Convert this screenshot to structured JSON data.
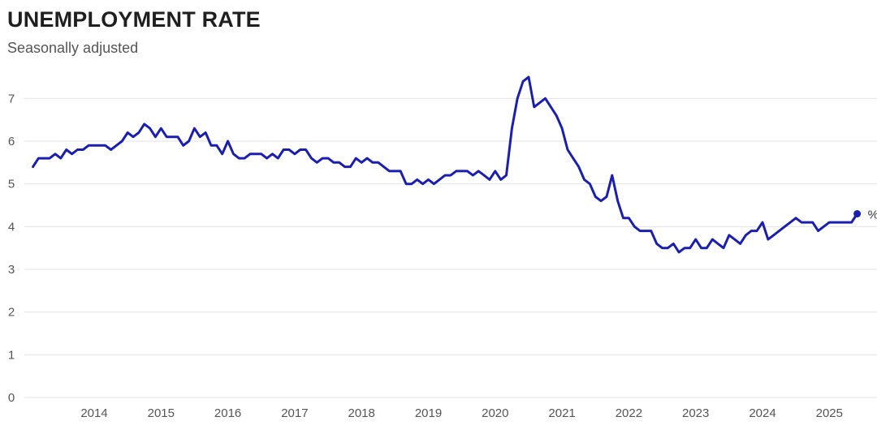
{
  "header": {
    "title": "UNEMPLOYMENT RATE",
    "subtitle": "Seasonally adjusted"
  },
  "chart_data": {
    "type": "line",
    "title": "UNEMPLOYMENT RATE",
    "subtitle": "Seasonally adjusted",
    "xlabel": "",
    "ylabel": "",
    "unit_label": "%",
    "ylim": [
      0,
      7.5
    ],
    "yticks": [
      0,
      1,
      2,
      3,
      4,
      5,
      6,
      7
    ],
    "xlim": [
      "2013-01",
      "2025-07"
    ],
    "xticks": [
      "2014",
      "2015",
      "2016",
      "2017",
      "2018",
      "2019",
      "2020",
      "2021",
      "2022",
      "2023",
      "2024",
      "2025"
    ],
    "grid": true,
    "line_color": "#1a1fb0",
    "series": [
      {
        "name": "",
        "start": "2013-02",
        "frequency": "monthly",
        "missing": [
          "2025-10"
        ],
        "x": [
          "2013-02",
          "2013-03",
          "2013-04",
          "2013-05",
          "2013-06",
          "2013-07",
          "2013-08",
          "2013-09",
          "2013-10",
          "2013-11",
          "2013-12",
          "2014-01",
          "2014-02",
          "2014-03",
          "2014-04",
          "2014-05",
          "2014-06",
          "2014-07",
          "2014-08",
          "2014-09",
          "2014-10",
          "2014-11",
          "2014-12",
          "2015-01",
          "2015-02",
          "2015-03",
          "2015-04",
          "2015-05",
          "2015-06",
          "2015-07",
          "2015-08",
          "2015-09",
          "2015-10",
          "2015-11",
          "2015-12",
          "2016-01",
          "2016-02",
          "2016-03",
          "2016-04",
          "2016-05",
          "2016-06",
          "2016-07",
          "2016-08",
          "2016-09",
          "2016-10",
          "2016-11",
          "2016-12",
          "2017-01",
          "2017-02",
          "2017-03",
          "2017-04",
          "2017-05",
          "2017-06",
          "2017-07",
          "2017-08",
          "2017-09",
          "2017-10",
          "2017-11",
          "2017-12",
          "2018-01",
          "2018-02",
          "2018-03",
          "2018-04",
          "2018-05",
          "2018-06",
          "2018-07",
          "2018-08",
          "2018-09",
          "2018-10",
          "2018-11",
          "2018-12",
          "2019-01",
          "2019-02",
          "2019-03",
          "2019-04",
          "2019-05",
          "2019-06",
          "2019-07",
          "2019-08",
          "2019-09",
          "2019-10",
          "2019-11",
          "2019-12",
          "2020-01",
          "2020-02",
          "2020-03",
          "2020-04",
          "2020-05",
          "2020-06",
          "2020-07",
          "2020-08",
          "2020-09",
          "2020-10",
          "2020-11",
          "2020-12",
          "2021-01",
          "2021-02",
          "2021-03",
          "2021-04",
          "2021-05",
          "2021-06",
          "2021-07",
          "2021-08",
          "2021-09",
          "2021-10",
          "2021-11",
          "2021-12",
          "2022-01",
          "2022-02",
          "2022-03",
          "2022-04",
          "2022-05",
          "2022-06",
          "2022-07",
          "2022-08",
          "2022-09",
          "2022-10",
          "2022-11",
          "2022-12",
          "2023-01",
          "2023-02",
          "2023-03",
          "2023-04",
          "2023-05",
          "2023-06",
          "2023-07",
          "2023-08",
          "2023-09",
          "2023-10",
          "2023-11",
          "2023-12",
          "2024-01",
          "2024-02",
          "2024-03",
          "2024-04",
          "2024-05",
          "2024-06",
          "2024-07",
          "2024-08",
          "2024-09",
          "2024-10",
          "2024-11",
          "2024-12",
          "2025-01",
          "2025-02",
          "2025-03",
          "2025-04",
          "2025-05",
          "2025-06"
        ],
        "values": [
          5.4,
          5.6,
          5.6,
          5.6,
          5.7,
          5.6,
          5.8,
          5.7,
          5.8,
          5.8,
          5.9,
          5.9,
          5.9,
          5.9,
          5.8,
          5.9,
          6.0,
          6.2,
          6.1,
          6.2,
          6.4,
          6.3,
          6.1,
          6.3,
          6.1,
          6.1,
          6.1,
          5.9,
          6.0,
          6.3,
          6.1,
          6.2,
          5.9,
          5.9,
          5.7,
          6.0,
          5.7,
          5.6,
          5.6,
          5.7,
          5.7,
          5.7,
          5.6,
          5.7,
          5.6,
          5.8,
          5.8,
          5.7,
          5.8,
          5.8,
          5.6,
          5.5,
          5.6,
          5.6,
          5.5,
          5.5,
          5.4,
          5.4,
          5.6,
          5.5,
          5.6,
          5.5,
          5.5,
          5.4,
          5.3,
          5.3,
          5.3,
          5.0,
          5.0,
          5.1,
          5.0,
          5.1,
          5.0,
          5.1,
          5.2,
          5.2,
          5.3,
          5.3,
          5.3,
          5.2,
          5.3,
          5.2,
          5.1,
          5.3,
          5.1,
          5.2,
          6.3,
          7.0,
          7.4,
          7.5,
          6.8,
          6.9,
          7.0,
          6.8,
          6.6,
          6.3,
          5.8,
          5.6,
          5.4,
          5.1,
          5.0,
          4.7,
          4.6,
          4.7,
          5.2,
          4.6,
          4.2,
          4.2,
          4.0,
          3.9,
          3.9,
          3.9,
          3.6,
          3.5,
          3.5,
          3.6,
          3.4,
          3.5,
          3.5,
          3.7,
          3.5,
          3.5,
          3.7,
          3.6,
          3.5,
          3.8,
          3.7,
          3.6,
          3.8,
          3.9,
          3.9,
          4.1,
          3.7,
          3.8,
          3.9,
          4.0,
          4.1,
          4.2,
          4.1,
          4.1,
          4.1,
          3.9,
          4.0,
          4.1,
          4.1,
          4.1,
          4.1,
          4.1,
          4.3
        ]
      }
    ]
  }
}
